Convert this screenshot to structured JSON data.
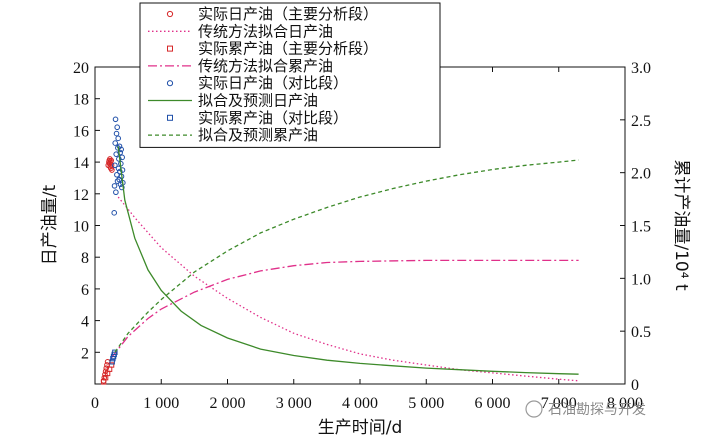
{
  "chart_data": {
    "type": "scatter",
    "xlabel": "生产时间/d",
    "ylabel": "日产油量/t",
    "y2label": "累计产油量/10⁴ t",
    "xlim": [
      0,
      8000
    ],
    "ylim": [
      0,
      20
    ],
    "y2lim": [
      0,
      3.0
    ],
    "x_ticks": [
      0,
      1000,
      2000,
      3000,
      4000,
      5000,
      6000,
      7000,
      8000
    ],
    "x_tick_labels": [
      "0",
      "1 000",
      "2 000",
      "3 000",
      "4 000",
      "5 000",
      "6 000",
      "7 000",
      "8 000"
    ],
    "y_ticks": [
      0,
      2,
      4,
      6,
      8,
      10,
      12,
      14,
      16,
      18,
      20
    ],
    "y_tick_labels": [
      "",
      "2",
      "4",
      "6",
      "8",
      "10",
      "12",
      "14",
      "16",
      "18",
      "20"
    ],
    "y2_ticks": [
      0,
      0.5,
      1.0,
      1.5,
      2.0,
      2.5,
      3.0
    ],
    "y2_tick_labels": [
      "0",
      "0.5",
      "1.0",
      "1.5",
      "2.0",
      "2.5",
      "3.0"
    ],
    "legend_position": "top-left",
    "series": [
      {
        "name": "实际日产油（主要分析段）",
        "axis": "left",
        "marker": "circle",
        "color": "#d62728",
        "x": [
          130,
          140,
          150,
          160,
          170,
          180,
          190,
          200,
          210,
          215,
          220,
          225,
          230,
          235,
          240,
          245,
          250,
          255
        ],
        "y": [
          0.2,
          0.4,
          0.6,
          0.8,
          1.0,
          1.2,
          1.4,
          13.8,
          14.0,
          14.1,
          13.9,
          14.2,
          13.7,
          14.0,
          13.6,
          14.1,
          13.8,
          13.5
        ]
      },
      {
        "name": "传统方法拟合日产油",
        "axis": "left",
        "style": "dotted",
        "color": "#e0308a",
        "x": [
          350,
          600,
          1000,
          1500,
          2000,
          2500,
          3000,
          3500,
          4000,
          4500,
          5000,
          5500,
          6000,
          6500,
          7000,
          7300
        ],
        "y": [
          11.8,
          10.5,
          8.6,
          6.8,
          5.4,
          4.2,
          3.2,
          2.5,
          1.9,
          1.5,
          1.2,
          0.9,
          0.7,
          0.5,
          0.3,
          0.2
        ]
      },
      {
        "name": "实际累产油（主要分析段）",
        "axis": "right",
        "marker": "square",
        "color": "#d62728",
        "x": [
          130,
          160,
          190,
          220,
          250
        ],
        "y": [
          0.02,
          0.06,
          0.1,
          0.14,
          0.18
        ]
      },
      {
        "name": "传统方法拟合累产油",
        "axis": "right",
        "style": "dashdot",
        "color": "#e0308a",
        "x": [
          250,
          500,
          800,
          1000,
          1500,
          2000,
          2500,
          3000,
          3500,
          4000,
          5000,
          6000,
          7300
        ],
        "y": [
          0.25,
          0.45,
          0.62,
          0.71,
          0.87,
          0.99,
          1.07,
          1.12,
          1.15,
          1.16,
          1.17,
          1.17,
          1.17
        ]
      },
      {
        "name": "实际日产油（对比段）",
        "axis": "left",
        "marker": "circle",
        "color": "#1f4fa8",
        "x": [
          290,
          295,
          300,
          305,
          310,
          315,
          320,
          325,
          330,
          335,
          340,
          345,
          350,
          355,
          360,
          365,
          370,
          375,
          380,
          385,
          390,
          395,
          400,
          405,
          410,
          415,
          420
        ],
        "y": [
          10.8,
          12.5,
          13.8,
          15.2,
          16.7,
          12.1,
          14.5,
          15.8,
          13.2,
          16.2,
          12.8,
          14.9,
          15.5,
          13.6,
          14.2,
          12.9,
          15.0,
          13.4,
          14.6,
          12.6,
          13.9,
          14.8,
          13.1,
          12.4,
          14.3,
          13.5,
          12.7
        ]
      },
      {
        "name": "拟合及预测日产油",
        "axis": "left",
        "style": "solid",
        "color": "#3d8a2a",
        "x": [
          350,
          450,
          600,
          800,
          1000,
          1300,
          1600,
          2000,
          2500,
          3000,
          3500,
          4000,
          4500,
          5000,
          5500,
          6000,
          6500,
          7000,
          7300
        ],
        "y": [
          15.0,
          11.6,
          9.2,
          7.2,
          5.9,
          4.6,
          3.7,
          2.9,
          2.2,
          1.8,
          1.5,
          1.3,
          1.15,
          1.0,
          0.9,
          0.8,
          0.72,
          0.65,
          0.62
        ]
      },
      {
        "name": "实际累产油（对比段）",
        "axis": "right",
        "marker": "square",
        "color": "#1f4fa8",
        "x": [
          260,
          270,
          280,
          290,
          300
        ],
        "y": [
          0.21,
          0.24,
          0.26,
          0.28,
          0.3
        ]
      },
      {
        "name": "拟合及预测累产油",
        "axis": "right",
        "style": "dashed",
        "color": "#3d8a2a",
        "x": [
          300,
          500,
          800,
          1000,
          1500,
          2000,
          2500,
          3000,
          3500,
          4000,
          4500,
          5000,
          5500,
          6000,
          6500,
          7000,
          7300
        ],
        "y": [
          0.3,
          0.48,
          0.68,
          0.8,
          1.06,
          1.26,
          1.43,
          1.56,
          1.67,
          1.77,
          1.85,
          1.92,
          1.98,
          2.03,
          2.07,
          2.1,
          2.12
        ]
      }
    ]
  },
  "watermark": "石油勘探与开发"
}
